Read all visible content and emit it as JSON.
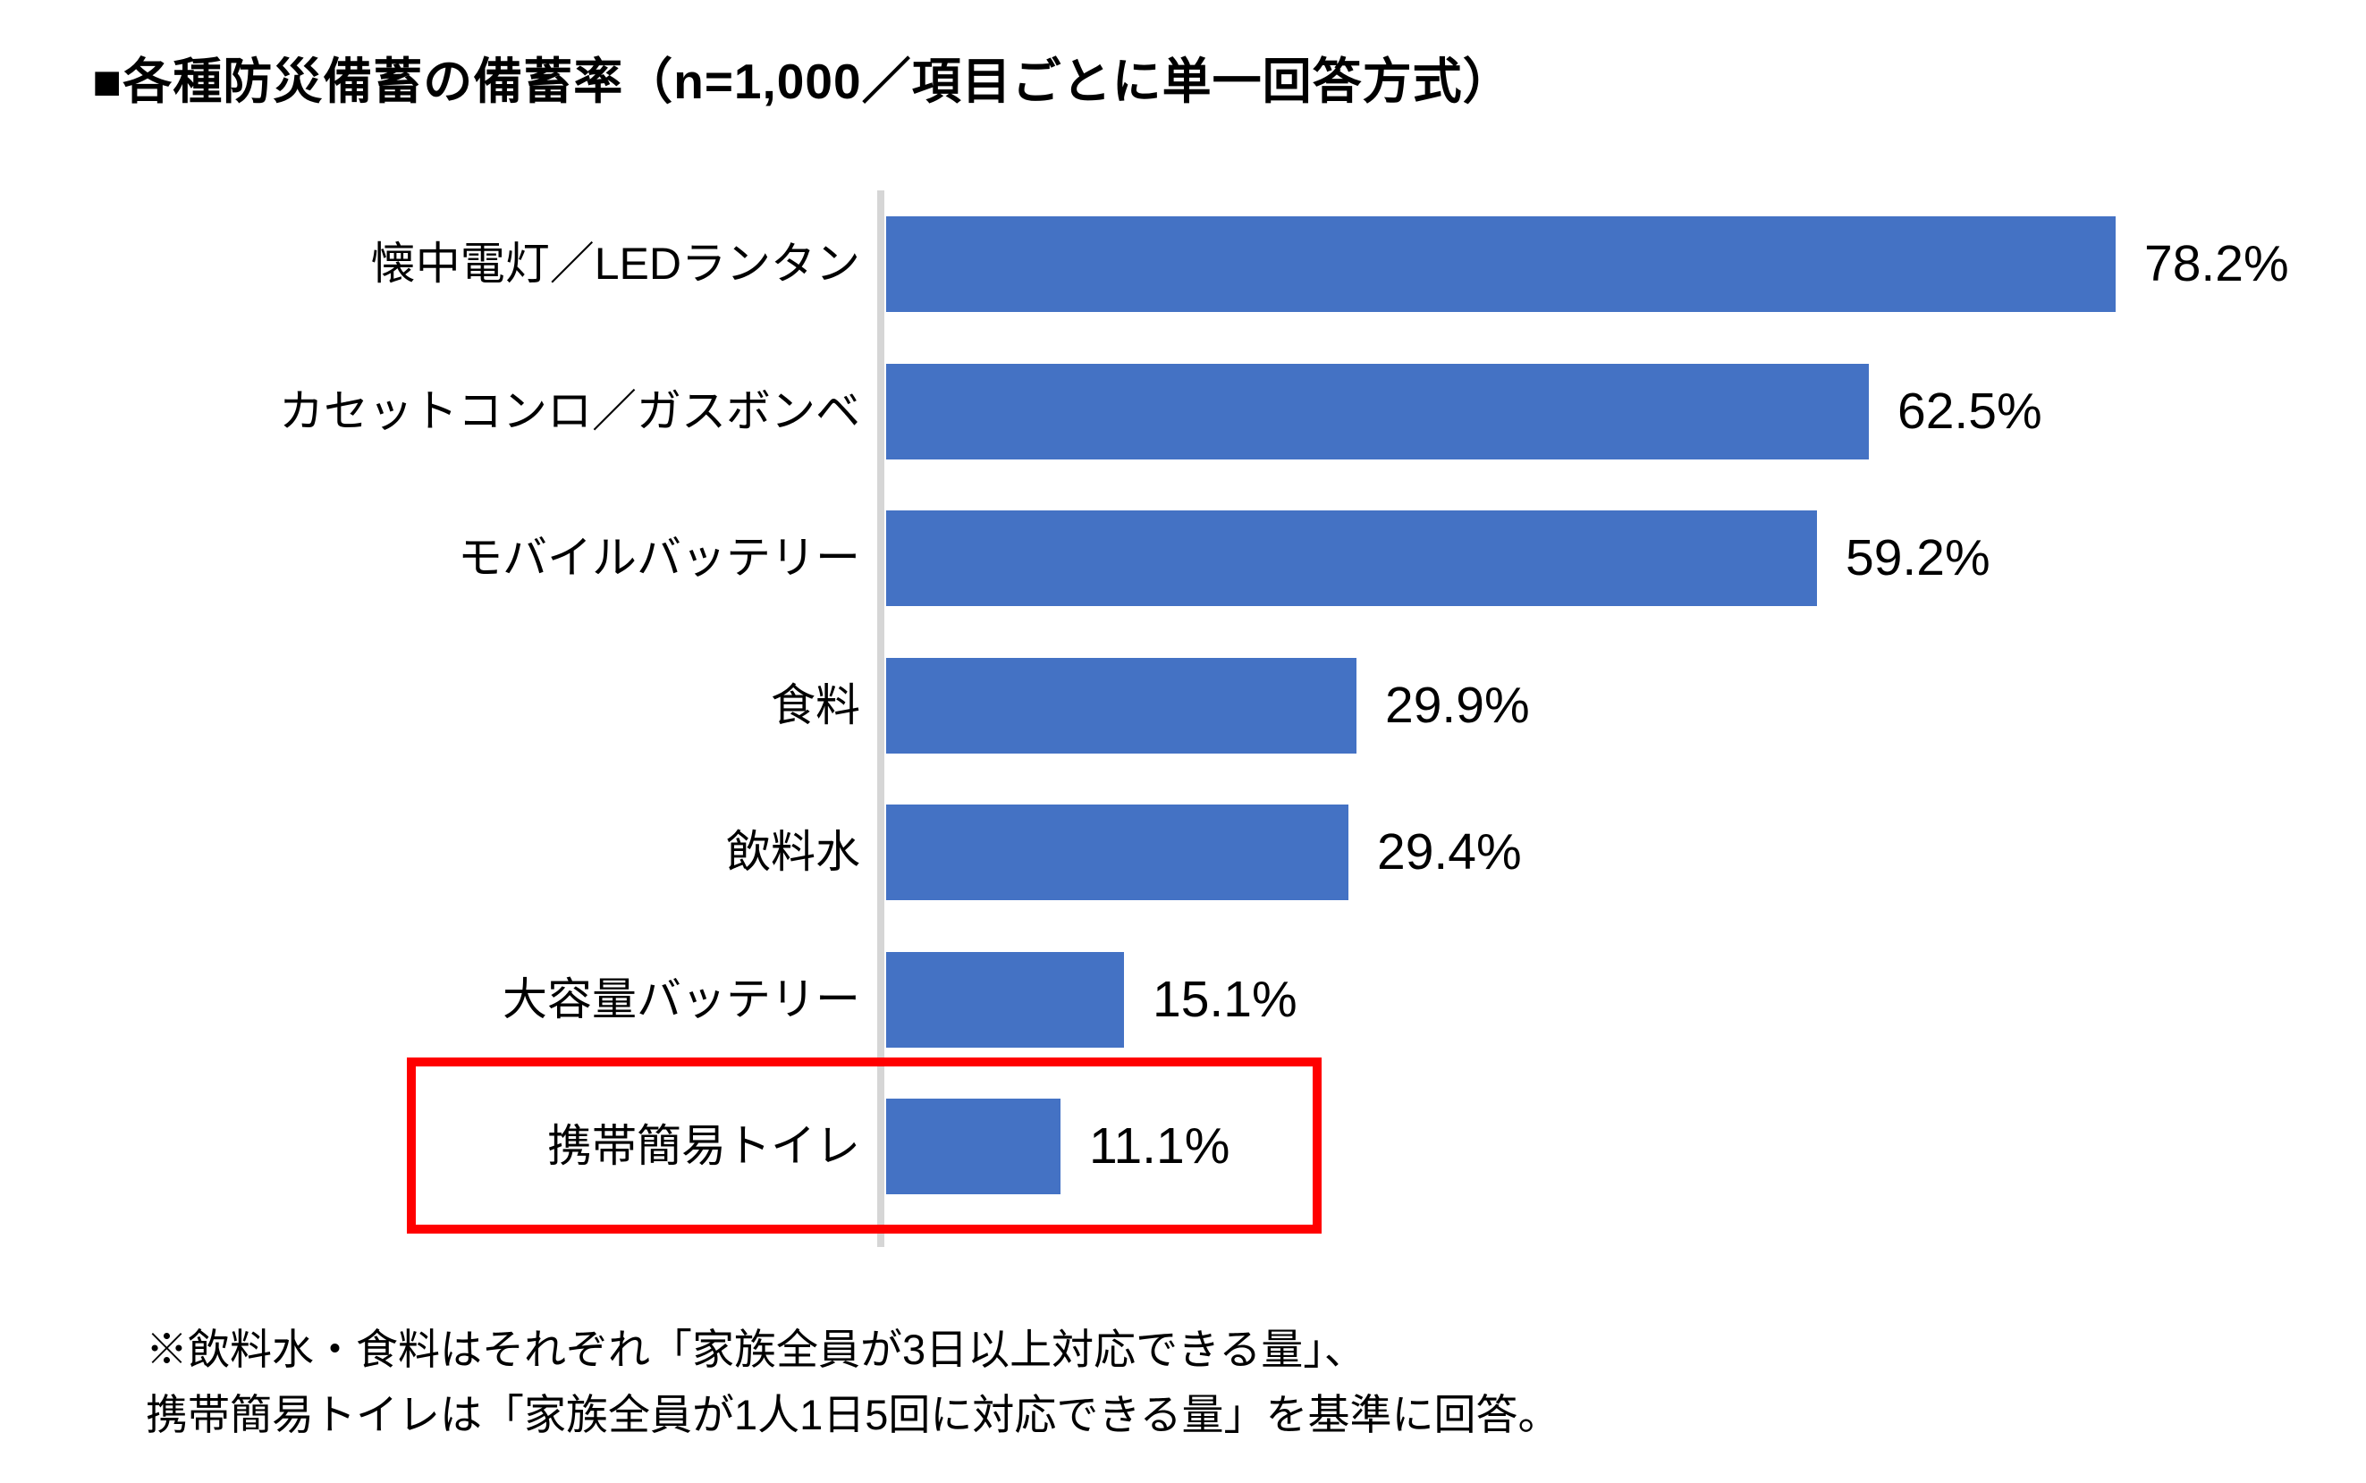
{
  "title": "■各種防災備蓄の備蓄率（n=1,000／項目ごとに単一回答方式）",
  "chart_data": {
    "type": "bar",
    "orientation": "horizontal",
    "title": "■各種防災備蓄の備蓄率（n=1,000／項目ごとに単一回答方式）",
    "sample_size": "n=1,000",
    "categories": [
      "懐中電灯／LEDランタン",
      "カセットコンロ／ガスボンベ",
      "モバイルバッテリー",
      "食料",
      "飲料水",
      "大容量バッテリー",
      "携帯簡易トイレ"
    ],
    "values": [
      78.2,
      62.5,
      59.2,
      29.9,
      29.4,
      15.1,
      11.1
    ],
    "value_labels": [
      "78.2%",
      "62.5%",
      "59.2%",
      "29.9%",
      "29.4%",
      "15.1%",
      "11.1%"
    ],
    "xlim": [
      0,
      80
    ],
    "grid": false,
    "legend": false,
    "bar_color": "#4472C4",
    "axis_line_color": "#D6D6D6",
    "highlight": {
      "category": "携帯簡易トイレ",
      "box_color": "#FF0000"
    }
  },
  "footnote": {
    "line1": "※飲料水・食料はそれぞれ「家族全員が3日以上対応できる量」、",
    "line2": "携帯簡易トイレは「家族全員が1人1日5回に対応できる量」を基準に回答。"
  }
}
